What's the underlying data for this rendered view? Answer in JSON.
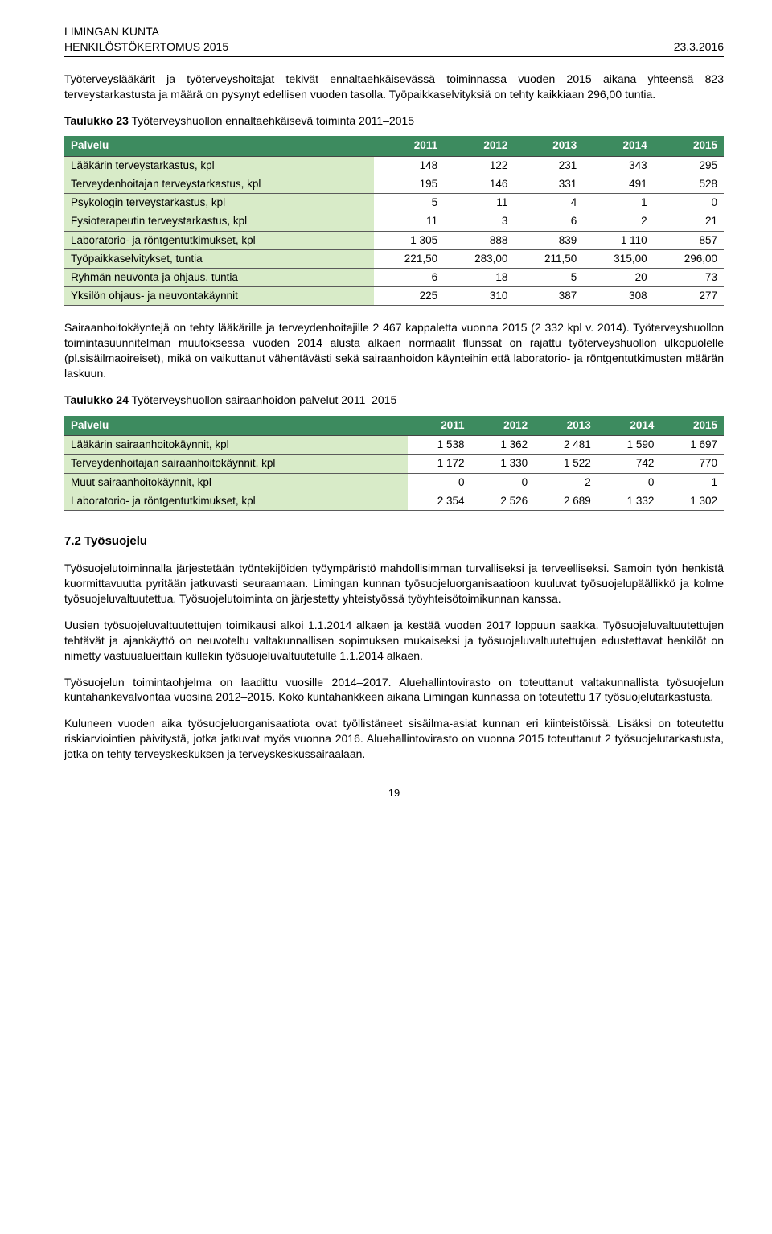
{
  "header": {
    "left_line1": "LIMINGAN KUNTA",
    "left_line2": "HENKILÖSTÖKERTOMUS 2015",
    "right": "23.3.2016"
  },
  "intro_paragraph": "Työterveyslääkärit ja työterveyshoitajat tekivät ennaltaehkäisevässä toiminnassa vuoden 2015 aikana yhteensä 823 terveystarkastusta ja määrä on pysynyt edellisen vuoden tasolla. Työpaikkaselvityksiä on tehty kaikkiaan 296,00 tuntia.",
  "table23": {
    "caption_bold": "Taulukko 23",
    "caption_rest": "  Työterveyshuollon ennaltaehkäisevä toiminta 2011–2015",
    "header_bg": "#3d8b5f",
    "row_label_bg": "#d8ebc8",
    "columns": [
      "Palvelu",
      "2011",
      "2012",
      "2013",
      "2014",
      "2015"
    ],
    "rows": [
      [
        "Lääkärin terveystarkastus, kpl",
        "148",
        "122",
        "231",
        "343",
        "295"
      ],
      [
        "Terveydenhoitajan terveystarkastus, kpl",
        "195",
        "146",
        "331",
        "491",
        "528"
      ],
      [
        "Psykologin terveystarkastus, kpl",
        "5",
        "11",
        "4",
        "1",
        "0"
      ],
      [
        "Fysioterapeutin terveystarkastus, kpl",
        "11",
        "3",
        "6",
        "2",
        "21"
      ],
      [
        "Laboratorio- ja röntgentutkimukset, kpl",
        "1 305",
        "888",
        "839",
        "1 110",
        "857"
      ],
      [
        "Työpaikkaselvitykset, tuntia",
        "221,50",
        "283,00",
        "211,50",
        "315,00",
        "296,00"
      ],
      [
        "Ryhmän neuvonta ja ohjaus, tuntia",
        "6",
        "18",
        "5",
        "20",
        "73"
      ],
      [
        "Yksilön ohjaus- ja neuvontakäynnit",
        "225",
        "310",
        "387",
        "308",
        "277"
      ]
    ]
  },
  "mid_paragraph": "Sairaanhoitokäyntejä on tehty lääkärille ja terveydenhoitajille 2 467 kappaletta vuonna 2015 (2 332 kpl v. 2014). Työterveyshuollon toimintasuunnitelman muutoksessa vuoden 2014 alusta alkaen normaalit flunssat on rajattu työterveyshuollon ulkopuolelle (pl.sisäilmaoireiset), mikä on vaikuttanut vähentävästi sekä sairaanhoidon käynteihin että laboratorio- ja röntgentutkimusten määrän laskuun.",
  "table24": {
    "caption_bold": "Taulukko 24",
    "caption_rest": "  Työterveyshuollon sairaanhoidon palvelut 2011–2015",
    "header_bg": "#3d8b5f",
    "row_label_bg": "#d8ebc8",
    "columns": [
      "Palvelu",
      "2011",
      "2012",
      "2013",
      "2014",
      "2015"
    ],
    "rows": [
      [
        "Lääkärin sairaanhoitokäynnit, kpl",
        "1 538",
        "1 362",
        "2 481",
        "1 590",
        "1 697"
      ],
      [
        "Terveydenhoitajan sairaanhoitokäynnit, kpl",
        "1 172",
        "1 330",
        "1 522",
        "742",
        "770"
      ],
      [
        "Muut sairaanhoitokäynnit, kpl",
        "0",
        "0",
        "2",
        "0",
        "1"
      ],
      [
        "Laboratorio- ja röntgentutkimukset, kpl",
        "2 354",
        "2 526",
        "2 689",
        "1 332",
        "1 302"
      ]
    ]
  },
  "section72": {
    "title": "7.2    Työsuojelu",
    "p1": "Työsuojelutoiminnalla järjestetään työntekijöiden työympäristö mahdollisimman turvalliseksi ja terveelliseksi. Samoin työn henkistä kuormittavuutta pyritään jatkuvasti seuraamaan. Limingan kunnan työsuojeluorganisaatioon kuuluvat työsuojelupäällikkö ja kolme työsuojeluvaltuutettua. Työsuojelutoiminta on järjestetty yhteistyössä työyhteisötoimikunnan kanssa.",
    "p2": "Uusien työsuojeluvaltuutettujen toimikausi alkoi 1.1.2014 alkaen ja kestää vuoden 2017 loppuun saakka. Työsuojeluvaltuutettujen tehtävät ja ajankäyttö on neuvoteltu valtakunnallisen sopimuksen mukaiseksi ja työsuojeluvaltuutettujen edustettavat henkilöt on nimetty vastuualueittain kullekin työsuojeluvaltuutetulle 1.1.2014 alkaen.",
    "p3": "Työsuojelun toimintaohjelma on laadittu vuosille 2014–2017. Aluehallintovirasto on toteuttanut valtakunnallista työsuojelun kuntahankevalvontaa vuosina 2012–2015. Koko kuntahankkeen aikana Limingan kunnassa on toteutettu 17 työsuojelutarkastusta.",
    "p4": "Kuluneen vuoden aika työsuojeluorganisaatiota ovat työllistäneet sisäilma-asiat kunnan eri kiinteistöissä. Lisäksi on toteutettu riskiarviointien päivitystä, jotka jatkuvat myös vuonna 2016. Aluehallintovirasto on vuonna 2015 toteuttanut 2 työsuojelutarkastusta, jotka on tehty terveyskeskuksen ja terveyskeskussairaalaan."
  },
  "page_number": "19"
}
